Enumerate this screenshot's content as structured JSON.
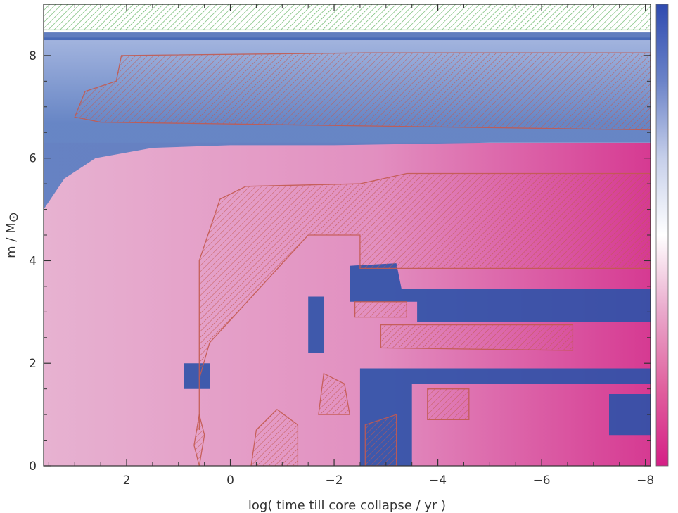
{
  "chart_data": {
    "type": "heatmap",
    "title": "",
    "xlabel": "log( time till core collapse / yr )",
    "ylabel_main": "m / M",
    "ylabel_symbol": "⊙",
    "xlim": [
      3.6,
      -8.1
    ],
    "ylim": [
      0,
      9.0
    ],
    "x_reversed": true,
    "x_ticks": [
      2,
      0,
      -2,
      -4,
      -6,
      -8
    ],
    "x_tick_labels": [
      "2",
      "0",
      "−2",
      "−4",
      "−6",
      "−8"
    ],
    "y_ticks": [
      0,
      2,
      4,
      6,
      8
    ],
    "y_tick_labels": [
      "0",
      "2",
      "4",
      "6",
      "8"
    ],
    "colorbar": {
      "position": "right",
      "colors": [
        "#2f4bb0",
        "#6b83c8",
        "#c6cfea",
        "#ffffff",
        "#e9a8cb",
        "#e0609e",
        "#d51f86"
      ]
    },
    "colors": {
      "pink_light": "#e7b2d1",
      "pink_mid": "#e28fc0",
      "pink_deep": "#d63a92",
      "blue_light": "#9fb1dd",
      "blue_mid": "#5f7fc2",
      "blue_deep": "#2c52a8",
      "hatch_green": "#64b464",
      "hatch_red": "#c35a50"
    },
    "regions": {
      "envelope_blue": [
        [
          3.6,
          8.35
        ],
        [
          3.6,
          5.0
        ],
        [
          3.2,
          5.6
        ],
        [
          2.6,
          6.0
        ],
        [
          1.5,
          6.2
        ],
        [
          0.0,
          6.25
        ],
        [
          -2.0,
          6.25
        ],
        [
          -5.0,
          6.3
        ],
        [
          -8.1,
          6.3
        ],
        [
          -8.1,
          8.35
        ]
      ],
      "surface_stripe_y": [
        8.3,
        8.45
      ],
      "top_convective_zone": {
        "x": [
          3.6,
          -8.1
        ],
        "y": [
          8.5,
          9.0
        ]
      },
      "envelope_convective_zone": [
        [
          2.2,
          7.5
        ],
        [
          2.1,
          8.0
        ],
        [
          -2.6,
          8.05
        ],
        [
          -8.1,
          8.05
        ],
        [
          -8.1,
          6.55
        ],
        [
          2.5,
          6.7
        ],
        [
          3.0,
          6.8
        ],
        [
          2.8,
          7.3
        ]
      ],
      "core_helium_convective_zone": [
        [
          0.6,
          0.7
        ],
        [
          0.6,
          4.0
        ],
        [
          0.2,
          5.2
        ],
        [
          -0.3,
          5.45
        ],
        [
          -2.5,
          5.5
        ],
        [
          -3.4,
          5.7
        ],
        [
          -8.1,
          5.7
        ],
        [
          -8.1,
          3.85
        ],
        [
          -2.5,
          3.85
        ],
        [
          -2.5,
          4.5
        ],
        [
          -1.5,
          4.5
        ],
        [
          0.4,
          2.4
        ],
        [
          0.6,
          1.7
        ]
      ],
      "carbon_convective_zone": [
        [
          -2.9,
          2.3
        ],
        [
          -2.9,
          2.75
        ],
        [
          -6.6,
          2.75
        ],
        [
          -6.6,
          2.25
        ]
      ],
      "small_convective_zones": [
        [
          [
            0.6,
            0.0
          ],
          [
            0.5,
            0.6
          ],
          [
            0.6,
            1.0
          ],
          [
            0.7,
            0.4
          ]
        ],
        [
          [
            -0.4,
            0.0
          ],
          [
            -0.5,
            0.7
          ],
          [
            -0.9,
            1.1
          ],
          [
            -1.3,
            0.8
          ],
          [
            -1.3,
            0.0
          ]
        ],
        [
          [
            -2.6,
            0.0
          ],
          [
            -2.6,
            0.8
          ],
          [
            -3.2,
            1.0
          ],
          [
            -3.2,
            0.0
          ]
        ],
        [
          [
            -1.7,
            1.0
          ],
          [
            -1.8,
            1.8
          ],
          [
            -2.2,
            1.6
          ],
          [
            -2.3,
            1.0
          ]
        ],
        [
          [
            -3.8,
            0.9
          ],
          [
            -3.8,
            1.5
          ],
          [
            -4.6,
            1.5
          ],
          [
            -4.6,
            0.9
          ]
        ],
        [
          [
            -2.4,
            2.9
          ],
          [
            -2.4,
            3.2
          ],
          [
            -3.4,
            3.2
          ],
          [
            -3.4,
            2.9
          ]
        ]
      ],
      "blue_core_patches": [
        [
          [
            -2.3,
            3.2
          ],
          [
            -2.3,
            3.9
          ],
          [
            -3.2,
            3.95
          ],
          [
            -3.3,
            3.45
          ],
          [
            -8.1,
            3.45
          ],
          [
            -8.1,
            2.8
          ],
          [
            -3.6,
            2.8
          ],
          [
            -3.6,
            3.2
          ]
        ],
        [
          [
            -2.5,
            0.0
          ],
          [
            -2.5,
            1.9
          ],
          [
            -8.1,
            1.9
          ],
          [
            -8.1,
            1.6
          ],
          [
            -3.5,
            1.6
          ],
          [
            -3.5,
            0.0
          ]
        ],
        [
          [
            -7.3,
            0.6
          ],
          [
            -7.3,
            1.4
          ],
          [
            -8.1,
            1.4
          ],
          [
            -8.1,
            0.6
          ]
        ],
        [
          [
            0.9,
            1.5
          ],
          [
            0.9,
            2.0
          ],
          [
            0.4,
            2.0
          ],
          [
            0.4,
            1.5
          ]
        ],
        [
          [
            -1.5,
            2.2
          ],
          [
            -1.5,
            3.3
          ],
          [
            -1.8,
            3.3
          ],
          [
            -1.8,
            2.2
          ]
        ]
      ]
    }
  }
}
